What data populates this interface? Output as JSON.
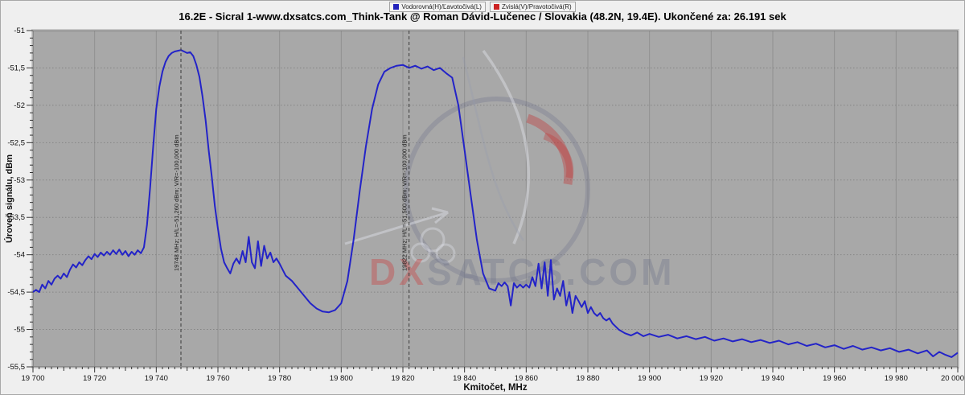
{
  "title": "16.2E - Sicral 1-www.dxsatcs.com_Think-Tank @ Roman Dávid-Lučenec / Slovakia (48.2N, 19.4E). Ukončené za: 26.191 sek",
  "legend": [
    {
      "label": "Vodorovná(H)/Ľavotočivá(L)",
      "color": "#2222bb"
    },
    {
      "label": "Zvislá(V)/Pravotočivá(R)",
      "color": "#cc2222"
    }
  ],
  "watermark": {
    "text_red": "DX",
    "text_gray": "SATCS.COM"
  },
  "colors": {
    "plot_background": "#a8a8a8",
    "outer_background": "#efefef",
    "grid": "#7d7d7d",
    "trace_hl": "#2323c8",
    "trace_vr": "#cc2222",
    "marker_line": "#3a3a3a"
  },
  "chart_data": {
    "type": "line",
    "title": "16.2E - Sicral 1-www.dxsatcs.com_Think-Tank @ Roman Dávid-Lučenec / Slovakia (48.2N, 19.4E). Ukončené za: 26.191 sek",
    "xlabel": "Kmitočet, MHz",
    "ylabel": "Úroveň signálu, dBm",
    "xlim": [
      19700,
      20000
    ],
    "ylim": [
      -55.5,
      -51
    ],
    "x_major_tick_step": 20,
    "x_minor_tick_step": 2,
    "y_major_tick_step": 0.5,
    "y_minor_tick_step": 0.1,
    "x_ticks": [
      19700,
      19720,
      19740,
      19760,
      19780,
      19800,
      19820,
      19840,
      19860,
      19880,
      19900,
      19920,
      19940,
      19960,
      19980,
      20000
    ],
    "y_ticks": [
      -51,
      -51.5,
      -52,
      -52.5,
      -53,
      -53.5,
      -54,
      -54.5,
      -55,
      -55.5
    ],
    "grid": true,
    "legend_position": "top-center",
    "markers": [
      {
        "freq": 19748,
        "label": "19748 MHz;  H/L=-51,260 dBm;  V/R=-100,000 dBm"
      },
      {
        "freq": 19822,
        "label": "19822 MHz;  H/L=-51,500 dBm;  V/R=-100,000 dBm"
      }
    ],
    "series": [
      {
        "name": "Vodorovná(H)/Ľavotočivá(L)",
        "color": "#2323c8",
        "points": [
          [
            19700,
            -54.5
          ],
          [
            19701,
            -54.47
          ],
          [
            19702,
            -54.5
          ],
          [
            19703,
            -54.4
          ],
          [
            19704,
            -54.45
          ],
          [
            19705,
            -54.35
          ],
          [
            19706,
            -54.4
          ],
          [
            19707,
            -54.32
          ],
          [
            19708,
            -54.28
          ],
          [
            19709,
            -54.32
          ],
          [
            19710,
            -54.25
          ],
          [
            19711,
            -54.3
          ],
          [
            19712,
            -54.2
          ],
          [
            19713,
            -54.13
          ],
          [
            19714,
            -54.17
          ],
          [
            19715,
            -54.1
          ],
          [
            19716,
            -54.14
          ],
          [
            19717,
            -54.07
          ],
          [
            19718,
            -54.02
          ],
          [
            19719,
            -54.06
          ],
          [
            19720,
            -53.99
          ],
          [
            19721,
            -54.03
          ],
          [
            19722,
            -53.97
          ],
          [
            19723,
            -54.01
          ],
          [
            19724,
            -53.96
          ],
          [
            19725,
            -54.0
          ],
          [
            19726,
            -53.94
          ],
          [
            19727,
            -53.99
          ],
          [
            19728,
            -53.93
          ],
          [
            19729,
            -54.0
          ],
          [
            19730,
            -53.95
          ],
          [
            19731,
            -54.02
          ],
          [
            19732,
            -53.96
          ],
          [
            19733,
            -54.0
          ],
          [
            19734,
            -53.94
          ],
          [
            19735,
            -53.98
          ],
          [
            19736,
            -53.9
          ],
          [
            19737,
            -53.6
          ],
          [
            19738,
            -53.1
          ],
          [
            19739,
            -52.55
          ],
          [
            19740,
            -52.05
          ],
          [
            19741,
            -51.75
          ],
          [
            19742,
            -51.55
          ],
          [
            19743,
            -51.42
          ],
          [
            19744,
            -51.34
          ],
          [
            19745,
            -51.3
          ],
          [
            19746,
            -51.28
          ],
          [
            19747,
            -51.27
          ],
          [
            19748,
            -51.26
          ],
          [
            19749,
            -51.28
          ],
          [
            19750,
            -51.3
          ],
          [
            19751,
            -51.29
          ],
          [
            19752,
            -51.34
          ],
          [
            19753,
            -51.46
          ],
          [
            19754,
            -51.62
          ],
          [
            19755,
            -51.88
          ],
          [
            19756,
            -52.2
          ],
          [
            19757,
            -52.6
          ],
          [
            19758,
            -52.95
          ],
          [
            19759,
            -53.35
          ],
          [
            19760,
            -53.65
          ],
          [
            19761,
            -53.92
          ],
          [
            19762,
            -54.1
          ],
          [
            19763,
            -54.18
          ],
          [
            19764,
            -54.25
          ],
          [
            19765,
            -54.12
          ],
          [
            19766,
            -54.05
          ],
          [
            19767,
            -54.12
          ],
          [
            19768,
            -53.95
          ],
          [
            19769,
            -54.1
          ],
          [
            19770,
            -53.76
          ],
          [
            19771,
            -54.1
          ],
          [
            19772,
            -54.18
          ],
          [
            19773,
            -53.82
          ],
          [
            19774,
            -54.15
          ],
          [
            19775,
            -53.88
          ],
          [
            19776,
            -54.05
          ],
          [
            19777,
            -53.97
          ],
          [
            19778,
            -54.1
          ],
          [
            19779,
            -54.05
          ],
          [
            19780,
            -54.12
          ],
          [
            19782,
            -54.28
          ],
          [
            19784,
            -54.35
          ],
          [
            19786,
            -54.45
          ],
          [
            19788,
            -54.55
          ],
          [
            19790,
            -54.65
          ],
          [
            19792,
            -54.72
          ],
          [
            19794,
            -54.76
          ],
          [
            19796,
            -54.77
          ],
          [
            19798,
            -54.74
          ],
          [
            19800,
            -54.65
          ],
          [
            19802,
            -54.35
          ],
          [
            19804,
            -53.8
          ],
          [
            19806,
            -53.15
          ],
          [
            19808,
            -52.55
          ],
          [
            19810,
            -52.05
          ],
          [
            19812,
            -51.72
          ],
          [
            19814,
            -51.55
          ],
          [
            19816,
            -51.5
          ],
          [
            19818,
            -51.47
          ],
          [
            19820,
            -51.46
          ],
          [
            19822,
            -51.5
          ],
          [
            19824,
            -51.47
          ],
          [
            19826,
            -51.51
          ],
          [
            19828,
            -51.48
          ],
          [
            19830,
            -51.53
          ],
          [
            19832,
            -51.5
          ],
          [
            19834,
            -51.57
          ],
          [
            19836,
            -51.63
          ],
          [
            19838,
            -52.0
          ],
          [
            19840,
            -52.6
          ],
          [
            19842,
            -53.2
          ],
          [
            19844,
            -53.8
          ],
          [
            19846,
            -54.25
          ],
          [
            19848,
            -54.45
          ],
          [
            19850,
            -54.48
          ],
          [
            19851,
            -54.38
          ],
          [
            19852,
            -54.42
          ],
          [
            19853,
            -54.37
          ],
          [
            19854,
            -54.42
          ],
          [
            19855,
            -54.68
          ],
          [
            19856,
            -54.38
          ],
          [
            19857,
            -54.44
          ],
          [
            19858,
            -54.4
          ],
          [
            19859,
            -54.44
          ],
          [
            19860,
            -54.4
          ],
          [
            19861,
            -54.44
          ],
          [
            19862,
            -54.3
          ],
          [
            19863,
            -54.42
          ],
          [
            19864,
            -54.12
          ],
          [
            19865,
            -54.45
          ],
          [
            19866,
            -54.1
          ],
          [
            19867,
            -54.55
          ],
          [
            19868,
            -54.07
          ],
          [
            19869,
            -54.6
          ],
          [
            19870,
            -54.45
          ],
          [
            19871,
            -54.55
          ],
          [
            19872,
            -54.35
          ],
          [
            19873,
            -54.68
          ],
          [
            19874,
            -54.5
          ],
          [
            19875,
            -54.78
          ],
          [
            19876,
            -54.55
          ],
          [
            19877,
            -54.62
          ],
          [
            19878,
            -54.7
          ],
          [
            19879,
            -54.62
          ],
          [
            19880,
            -54.78
          ],
          [
            19881,
            -54.7
          ],
          [
            19882,
            -54.78
          ],
          [
            19883,
            -54.82
          ],
          [
            19884,
            -54.78
          ],
          [
            19885,
            -54.85
          ],
          [
            19886,
            -54.88
          ],
          [
            19887,
            -54.85
          ],
          [
            19888,
            -54.92
          ],
          [
            19889,
            -54.96
          ],
          [
            19890,
            -55.0
          ],
          [
            19892,
            -55.05
          ],
          [
            19894,
            -55.08
          ],
          [
            19896,
            -55.04
          ],
          [
            19898,
            -55.09
          ],
          [
            19900,
            -55.06
          ],
          [
            19903,
            -55.1
          ],
          [
            19906,
            -55.07
          ],
          [
            19909,
            -55.12
          ],
          [
            19912,
            -55.09
          ],
          [
            19915,
            -55.13
          ],
          [
            19918,
            -55.1
          ],
          [
            19921,
            -55.15
          ],
          [
            19924,
            -55.12
          ],
          [
            19927,
            -55.16
          ],
          [
            19930,
            -55.13
          ],
          [
            19933,
            -55.17
          ],
          [
            19936,
            -55.14
          ],
          [
            19939,
            -55.18
          ],
          [
            19942,
            -55.15
          ],
          [
            19945,
            -55.2
          ],
          [
            19948,
            -55.17
          ],
          [
            19951,
            -55.22
          ],
          [
            19954,
            -55.19
          ],
          [
            19957,
            -55.24
          ],
          [
            19960,
            -55.21
          ],
          [
            19963,
            -55.26
          ],
          [
            19966,
            -55.22
          ],
          [
            19969,
            -55.27
          ],
          [
            19972,
            -55.24
          ],
          [
            19975,
            -55.28
          ],
          [
            19978,
            -55.25
          ],
          [
            19981,
            -55.3
          ],
          [
            19984,
            -55.27
          ],
          [
            19987,
            -55.32
          ],
          [
            19990,
            -55.28
          ],
          [
            19992,
            -55.36
          ],
          [
            19994,
            -55.3
          ],
          [
            19996,
            -55.34
          ],
          [
            19998,
            -55.37
          ],
          [
            20000,
            -55.31
          ]
        ]
      },
      {
        "name": "Zvislá(V)/Pravotočivá(R)",
        "color": "#cc2222",
        "points": [],
        "note_visible_level_dbm": -100.0
      }
    ]
  }
}
